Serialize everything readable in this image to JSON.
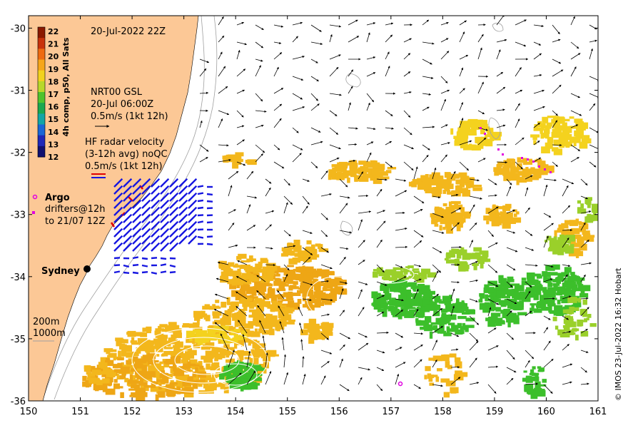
{
  "map": {
    "timestamp": "20-Jul-2022 22Z",
    "credit": "© IMOS 23-Jul-2022 16:32 Hobart",
    "lon_ticks": [
      "150",
      "151",
      "152",
      "153",
      "154",
      "155",
      "156",
      "157",
      "158",
      "159",
      "160",
      "161"
    ],
    "lat_ticks": [
      "-30",
      "-31",
      "-32",
      "-33",
      "-34",
      "-35",
      "-36"
    ],
    "lon_range": [
      150,
      161
    ],
    "lat_range": [
      -36,
      -29.8
    ]
  },
  "colorbar": {
    "label": "4h comp, p50, All Sats",
    "ticks": [
      "22",
      "21",
      "20",
      "19",
      "18",
      "17",
      "16",
      "15",
      "14",
      "13",
      "12"
    ],
    "colors": [
      "#8b1a00",
      "#c8320a",
      "#ee6a10",
      "#f6a61a",
      "#f2d21e",
      "#b8d82a",
      "#4fc32d",
      "#1aa850",
      "#12a5a5",
      "#1a66d6",
      "#1f28b8",
      "#101070"
    ]
  },
  "legend": {
    "gsl_title": "NRT00 GSL",
    "gsl_time": "20-Jul 06:00Z",
    "gsl_scale": "0.5m/s (1kt 12h)",
    "hf_title": "HF radar velocity",
    "hf_avg": "(3-12h avg) noQC",
    "hf_scale": "0.5m/s (1kt 12h)",
    "argo": "Argo",
    "drifters_1": "drifters@12h",
    "drifters_2": "to 21/07 12Z",
    "city": "Sydney",
    "contour_200": "200m",
    "contour_1000": "1000m"
  },
  "colors": {
    "land": "#fcc896",
    "sst_warm": "#f3b71c",
    "sst_orange": "#eea615",
    "sst_yellow": "#f4d21e",
    "sst_green": "#3cbf2b",
    "sst_lightgreen": "#9ad02a",
    "hf_radar": "#1616e0",
    "argo": "#e000e0",
    "contour": "#a0a0a0",
    "eddy": "#ffffff"
  }
}
